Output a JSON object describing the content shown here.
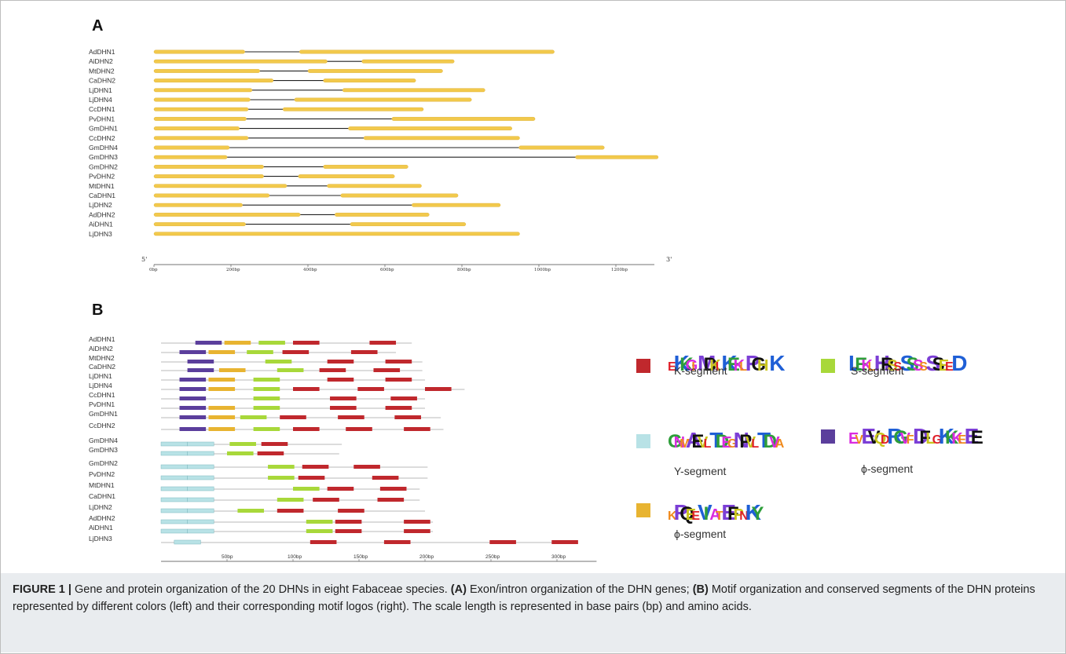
{
  "panel_a": {
    "letter": "A",
    "genes": [
      "AdDHN1",
      "AiDHN2",
      "MtDHN2",
      "CaDHN2",
      "LjDHN1",
      "LjDHN4",
      "CcDHN1",
      "PvDHN1",
      "GmDHN1",
      "CcDHN2",
      "GmDHN4",
      "GmDHN3",
      "GmDHN2",
      "PvDHN2",
      "MtDHN1",
      "CaDHN1",
      "LjDHN2",
      "AdDHN2",
      "AiDHN1",
      "LjDHN3"
    ],
    "exons": [
      [
        [
          0,
          236
        ],
        [
          378,
          1040
        ]
      ],
      [
        [
          0,
          450
        ],
        [
          540,
          780
        ]
      ],
      [
        [
          0,
          275
        ],
        [
          400,
          750
        ]
      ],
      [
        [
          0,
          310
        ],
        [
          440,
          680
        ]
      ],
      [
        [
          0,
          255
        ],
        [
          490,
          860
        ]
      ],
      [
        [
          0,
          250
        ],
        [
          365,
          825
        ]
      ],
      [
        [
          0,
          245
        ],
        [
          335,
          700
        ]
      ],
      [
        [
          0,
          240
        ],
        [
          618,
          990
        ]
      ],
      [
        [
          0,
          222
        ],
        [
          505,
          930
        ]
      ],
      [
        [
          0,
          245
        ],
        [
          545,
          950
        ]
      ],
      [
        [
          0,
          196
        ],
        [
          948,
          1170
        ]
      ],
      [
        [
          0,
          190
        ],
        [
          1095,
          1310
        ]
      ],
      [
        [
          0,
          285
        ],
        [
          440,
          660
        ]
      ],
      [
        [
          0,
          285
        ],
        [
          375,
          625
        ]
      ],
      [
        [
          0,
          345
        ],
        [
          450,
          695
        ]
      ],
      [
        [
          0,
          300
        ],
        [
          485,
          790
        ]
      ],
      [
        [
          0,
          230
        ],
        [
          670,
          900
        ]
      ],
      [
        [
          0,
          380
        ],
        [
          470,
          715
        ]
      ],
      [
        [
          0,
          238
        ],
        [
          510,
          810
        ]
      ],
      [
        [
          0,
          950
        ]
      ]
    ],
    "axis": {
      "range_bp": [
        0,
        1300
      ],
      "ticks": [
        "0bp",
        "200bp",
        "400bp",
        "600bp",
        "800bp",
        "1000bp",
        "1200bp"
      ],
      "tick_values": [
        0,
        200,
        400,
        600,
        800,
        1000,
        1200
      ],
      "left_end": "5'",
      "right_end": "3'"
    },
    "exon_color": "#f2c94c",
    "intron_color": "#222222"
  },
  "panel_b": {
    "letter": "B",
    "proteins": [
      "AdDHN1",
      "AiDHN2",
      "MtDHN2",
      "CaDHN2",
      "LjDHN1",
      "LjDHN4",
      "CcDHN1",
      "PvDHN1",
      "GmDHN1",
      "CcDHN2",
      "GmDHN4",
      "GmDHN3",
      "GmDHN2",
      "PvDHN2",
      "MtDHN1",
      "CaDHN1",
      "LjDHN2",
      "AdDHN2",
      "AiDHN1",
      "LjDHN3"
    ],
    "lengths": [
      190,
      178,
      198,
      198,
      200,
      230,
      200,
      200,
      212,
      214,
      137,
      135,
      202,
      202,
      196,
      196,
      200,
      206,
      206,
      315
    ],
    "motifs": [
      [
        [
          "phi",
          26,
          46
        ],
        [
          "phi2",
          48,
          68
        ],
        [
          "S",
          74,
          94
        ],
        [
          "K",
          100,
          120
        ],
        [
          "K",
          158,
          178
        ]
      ],
      [
        [
          "phi",
          14,
          34
        ],
        [
          "phi2",
          36,
          56
        ],
        [
          "S",
          65,
          85
        ],
        [
          "K",
          92,
          112
        ],
        [
          "K",
          144,
          164
        ]
      ],
      [
        [
          "phi",
          20,
          40
        ],
        [
          "S",
          79,
          99
        ],
        [
          "K",
          126,
          146
        ],
        [
          "K",
          170,
          190
        ]
      ],
      [
        [
          "phi",
          20,
          40
        ],
        [
          "phi2",
          44,
          64
        ],
        [
          "S",
          88,
          108
        ],
        [
          "K",
          120,
          140
        ],
        [
          "K",
          161,
          181
        ]
      ],
      [
        [
          "phi",
          14,
          34
        ],
        [
          "phi2",
          36,
          56
        ],
        [
          "S",
          70,
          90
        ],
        [
          "K",
          126,
          146
        ],
        [
          "K",
          170,
          190
        ]
      ],
      [
        [
          "phi",
          14,
          34
        ],
        [
          "phi2",
          36,
          56
        ],
        [
          "S",
          70,
          90
        ],
        [
          "K",
          100,
          120
        ],
        [
          "K",
          149,
          169
        ],
        [
          "K",
          200,
          220
        ]
      ],
      [
        [
          "phi",
          14,
          34
        ],
        [
          "S",
          70,
          90
        ],
        [
          "K",
          128,
          148
        ],
        [
          "K",
          174,
          194
        ]
      ],
      [
        [
          "phi",
          14,
          34
        ],
        [
          "phi2",
          36,
          56
        ],
        [
          "S",
          70,
          90
        ],
        [
          "K",
          128,
          148
        ],
        [
          "K",
          170,
          190
        ]
      ],
      [
        [
          "phi",
          14,
          34
        ],
        [
          "phi2",
          36,
          56
        ],
        [
          "S",
          60,
          80
        ],
        [
          "K",
          90,
          110
        ],
        [
          "K",
          134,
          154
        ],
        [
          "K",
          177,
          197
        ]
      ],
      [
        [
          "phi",
          14,
          34
        ],
        [
          "phi2",
          36,
          56
        ],
        [
          "S",
          70,
          90
        ],
        [
          "K",
          100,
          120
        ],
        [
          "K",
          140,
          160
        ],
        [
          "K",
          184,
          204
        ]
      ],
      [
        [
          "Y",
          0,
          20
        ],
        [
          "Y",
          20,
          40
        ],
        [
          "S",
          52,
          72
        ],
        [
          "K",
          76,
          96
        ]
      ],
      [
        [
          "Y",
          0,
          20
        ],
        [
          "Y",
          20,
          40
        ],
        [
          "S",
          50,
          70
        ],
        [
          "K",
          73,
          93
        ]
      ],
      [
        [
          "Y",
          0,
          20
        ],
        [
          "Y",
          20,
          40
        ],
        [
          "S",
          81,
          101
        ],
        [
          "K",
          107,
          127
        ],
        [
          "K",
          146,
          166
        ]
      ],
      [
        [
          "Y",
          0,
          20
        ],
        [
          "Y",
          20,
          40
        ],
        [
          "S",
          81,
          101
        ],
        [
          "K",
          104,
          124
        ],
        [
          "K",
          160,
          180
        ]
      ],
      [
        [
          "Y",
          0,
          20
        ],
        [
          "Y",
          20,
          40
        ],
        [
          "S",
          100,
          120
        ],
        [
          "K",
          126,
          146
        ],
        [
          "K",
          166,
          186
        ]
      ],
      [
        [
          "Y",
          0,
          20
        ],
        [
          "Y",
          20,
          40
        ],
        [
          "S",
          88,
          108
        ],
        [
          "K",
          115,
          135
        ],
        [
          "K",
          164,
          184
        ]
      ],
      [
        [
          "Y",
          0,
          20
        ],
        [
          "Y",
          20,
          40
        ],
        [
          "S",
          58,
          78
        ],
        [
          "K",
          88,
          108
        ],
        [
          "K",
          134,
          154
        ]
      ],
      [
        [
          "Y",
          0,
          20
        ],
        [
          "Y",
          20,
          40
        ],
        [
          "S",
          110,
          130
        ],
        [
          "K",
          132,
          152
        ],
        [
          "K",
          184,
          204
        ]
      ],
      [
        [
          "Y",
          0,
          20
        ],
        [
          "Y",
          20,
          40
        ],
        [
          "S",
          110,
          130
        ],
        [
          "K",
          132,
          152
        ],
        [
          "K",
          184,
          204
        ]
      ],
      [
        [
          "Y",
          10,
          30
        ],
        [
          "K",
          113,
          133
        ],
        [
          "K",
          169,
          189
        ],
        [
          "K",
          249,
          269
        ],
        [
          "K",
          296,
          316
        ]
      ]
    ],
    "axis": {
      "range_aa": [
        0,
        330
      ],
      "ticks": [
        "50bp",
        "100bp",
        "150bp",
        "200bp",
        "250bp",
        "300bp"
      ],
      "tick_values": [
        50,
        100,
        150,
        200,
        250,
        300
      ]
    },
    "legend": [
      {
        "key": "K",
        "label": "K-segment",
        "color": "#c0282d",
        "logo": "EKKGIMDKIKEKLPGH K"
      },
      {
        "key": "S",
        "label": "S-segment",
        "color": "#a8d83a",
        "logo": "LEKLHRSSSSSSSSEED"
      },
      {
        "key": "Y",
        "label": "Y-segment",
        "color": "#b8e2e6",
        "logo": "GNMAEVLTDEGNPVLTDVA"
      },
      {
        "key": "phi",
        "label": "ϕ-segment",
        "color": "#5b3e9c",
        "logo": "EVEVQDRGVFDFLGKKKEEE"
      },
      {
        "key": "phi2",
        "label": "ϕ-segment",
        "color": "#e8b431",
        "logo": "KPQEEVIATEFPNKY"
      }
    ]
  },
  "caption": {
    "lead": "FIGURE 1 |",
    "intro": " Gene and protein organization of the 20 DHNs in eight Fabaceae species. ",
    "a_label": "(A)",
    "a_text": " Exon/intron organization of the DHN genes; ",
    "b_label": "(B)",
    "b_text": " Motif organization and conserved segments of the DHN proteins represented by different colors (left) and their corresponding motif logos (right). The scale length is represented in base pairs (bp) and amino acids."
  }
}
